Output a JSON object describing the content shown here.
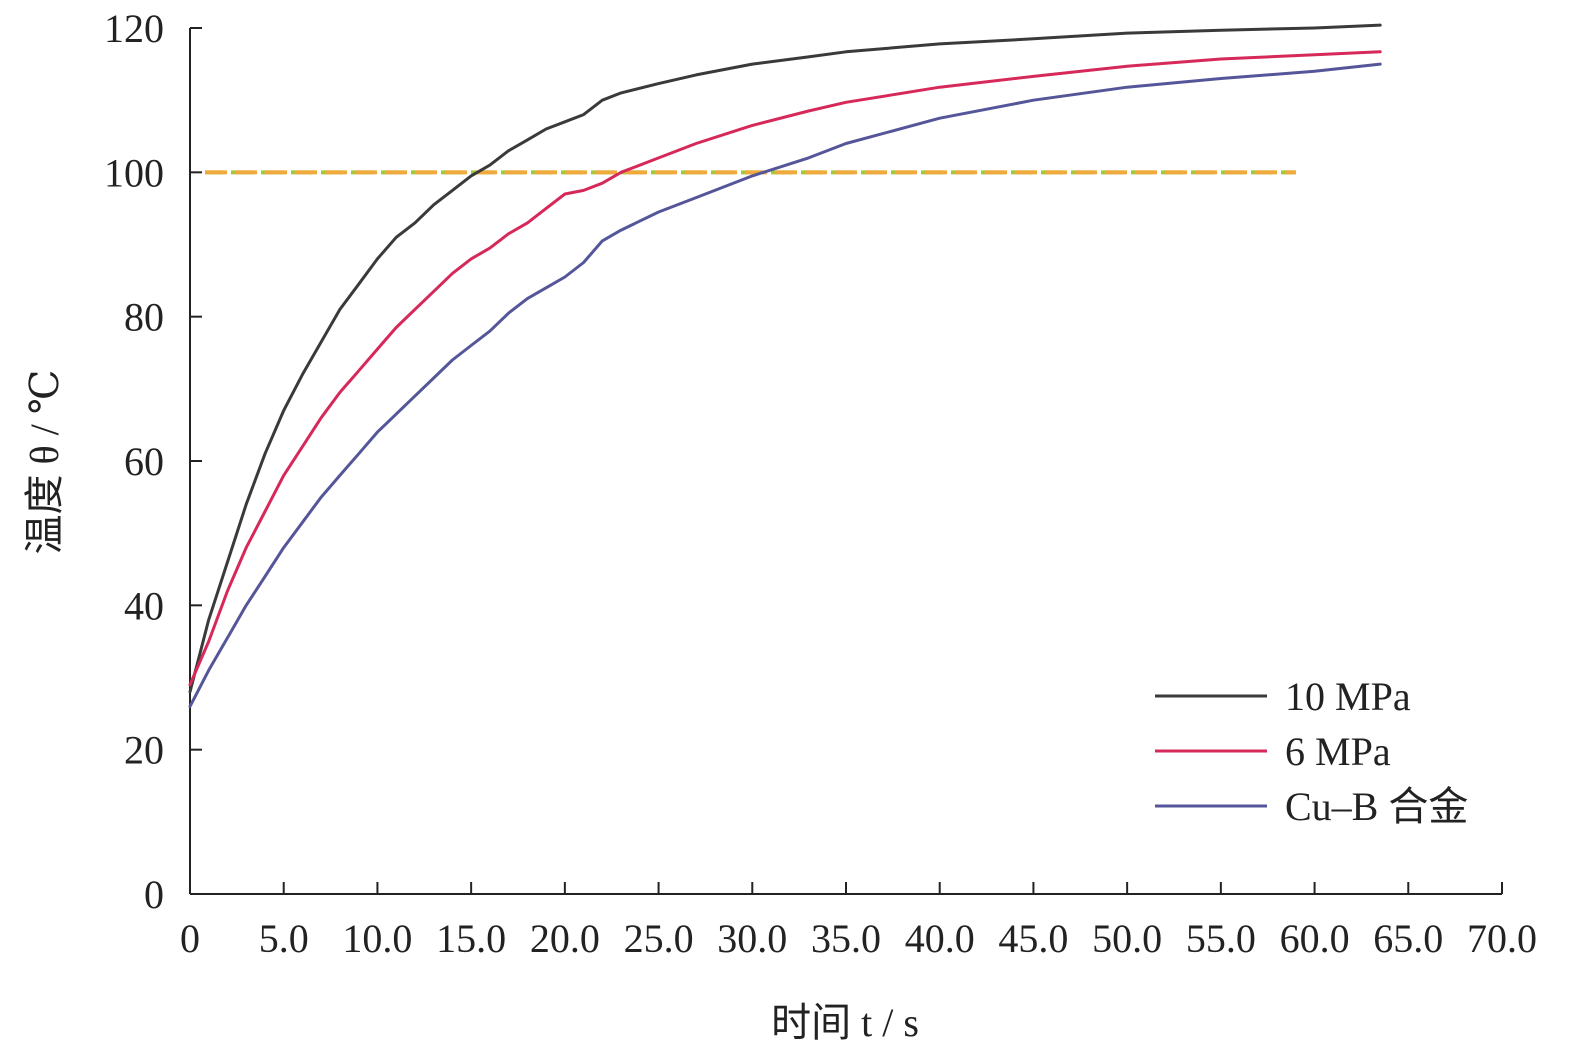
{
  "chart_data": {
    "type": "line",
    "title": "",
    "xlabel": "时间 t / s",
    "ylabel": "温度 θ / ℃",
    "xlim": [
      0,
      70
    ],
    "ylim": [
      0,
      120
    ],
    "x_ticks": [
      0,
      5,
      10,
      15,
      20,
      25,
      30,
      35,
      40,
      45,
      50,
      55,
      60,
      65,
      70
    ],
    "x_tick_labels": [
      "0",
      "5.0",
      "10.0",
      "15.0",
      "20.0",
      "25.0",
      "30.0",
      "35.0",
      "40.0",
      "45.0",
      "50.0",
      "55.0",
      "60.0",
      "65.0",
      "70.0"
    ],
    "y_ticks": [
      0,
      20,
      40,
      60,
      80,
      100,
      120
    ],
    "y_tick_labels": [
      "0",
      "20",
      "40",
      "60",
      "80",
      "100",
      "120"
    ],
    "grid": false,
    "legend_position": "bottom-right",
    "series": [
      {
        "name": "10 MPa",
        "color": "#3a3a3a",
        "points": [
          [
            0,
            28
          ],
          [
            1,
            38
          ],
          [
            2,
            46
          ],
          [
            3,
            54
          ],
          [
            4,
            61
          ],
          [
            5,
            67
          ],
          [
            6,
            72
          ],
          [
            7,
            76.5
          ],
          [
            8,
            81
          ],
          [
            9,
            84.5
          ],
          [
            10,
            88
          ],
          [
            11,
            91
          ],
          [
            12,
            93
          ],
          [
            13,
            95.5
          ],
          [
            14,
            97.5
          ],
          [
            15,
            99.5
          ],
          [
            16,
            101
          ],
          [
            17,
            103
          ],
          [
            18,
            104.5
          ],
          [
            19,
            106
          ],
          [
            20,
            107
          ],
          [
            21,
            108
          ],
          [
            22,
            110
          ],
          [
            23,
            111
          ],
          [
            25,
            112.3
          ],
          [
            27,
            113.5
          ],
          [
            30,
            115
          ],
          [
            33,
            116
          ],
          [
            35,
            116.7
          ],
          [
            40,
            117.8
          ],
          [
            45,
            118.5
          ],
          [
            50,
            119.3
          ],
          [
            55,
            119.7
          ],
          [
            60,
            120
          ],
          [
            63.5,
            120.4
          ]
        ]
      },
      {
        "name": "6 MPa",
        "color": "#d6295a",
        "points": [
          [
            0,
            29
          ],
          [
            1,
            35
          ],
          [
            2,
            42
          ],
          [
            3,
            48
          ],
          [
            4,
            53
          ],
          [
            5,
            58
          ],
          [
            6,
            62
          ],
          [
            7,
            66
          ],
          [
            8,
            69.5
          ],
          [
            9,
            72.5
          ],
          [
            10,
            75.5
          ],
          [
            11,
            78.5
          ],
          [
            12,
            81
          ],
          [
            13,
            83.5
          ],
          [
            14,
            86
          ],
          [
            15,
            88
          ],
          [
            16,
            89.5
          ],
          [
            17,
            91.5
          ],
          [
            18,
            93
          ],
          [
            19,
            95
          ],
          [
            20,
            97
          ],
          [
            21,
            97.5
          ],
          [
            22,
            98.5
          ],
          [
            23,
            100
          ],
          [
            25,
            102
          ],
          [
            27,
            104
          ],
          [
            30,
            106.5
          ],
          [
            33,
            108.5
          ],
          [
            35,
            109.7
          ],
          [
            40,
            111.8
          ],
          [
            45,
            113.3
          ],
          [
            50,
            114.7
          ],
          [
            55,
            115.7
          ],
          [
            60,
            116.3
          ],
          [
            63.5,
            116.7
          ]
        ]
      },
      {
        "name": "Cu–B 合金",
        "color": "#55569a",
        "points": [
          [
            0,
            26
          ],
          [
            1,
            31
          ],
          [
            2,
            35.5
          ],
          [
            3,
            40
          ],
          [
            4,
            44
          ],
          [
            5,
            48
          ],
          [
            6,
            51.5
          ],
          [
            7,
            55
          ],
          [
            8,
            58
          ],
          [
            9,
            61
          ],
          [
            10,
            64
          ],
          [
            11,
            66.5
          ],
          [
            12,
            69
          ],
          [
            13,
            71.5
          ],
          [
            14,
            74
          ],
          [
            15,
            76
          ],
          [
            16,
            78
          ],
          [
            17,
            80.5
          ],
          [
            18,
            82.5
          ],
          [
            19,
            84
          ],
          [
            20,
            85.5
          ],
          [
            21,
            87.5
          ],
          [
            22,
            90.5
          ],
          [
            23,
            92
          ],
          [
            25,
            94.5
          ],
          [
            27,
            96.5
          ],
          [
            30,
            99.5
          ],
          [
            33,
            102
          ],
          [
            35,
            104
          ],
          [
            40,
            107.5
          ],
          [
            45,
            110
          ],
          [
            50,
            111.8
          ],
          [
            55,
            113
          ],
          [
            60,
            114
          ],
          [
            63.5,
            115
          ]
        ]
      }
    ],
    "reference_line": {
      "y": 100,
      "x_start": 0.8,
      "x_end": 59,
      "colors": [
        "#f0a93c",
        "#a3c93a"
      ]
    }
  }
}
